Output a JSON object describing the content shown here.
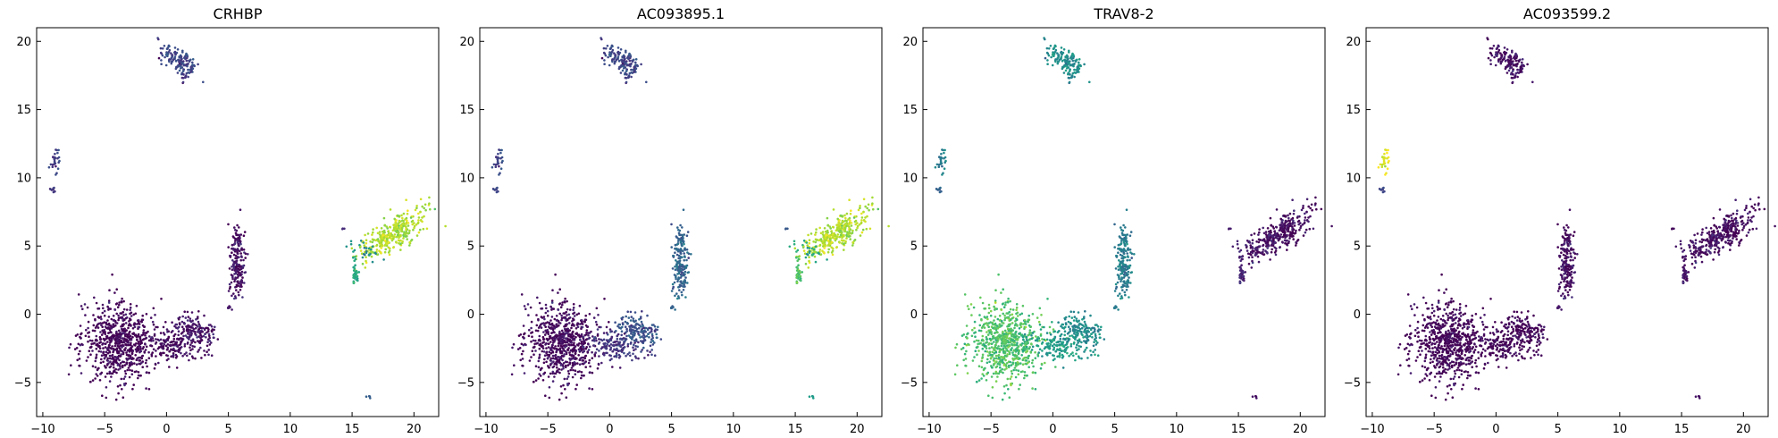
{
  "chart_data": {
    "type": "scatter",
    "xlim": [
      -10.5,
      22
    ],
    "ylim": [
      -7.5,
      21
    ],
    "x_ticks": [
      -10,
      -5,
      0,
      5,
      10,
      15,
      20
    ],
    "y_ticks": [
      -5,
      0,
      5,
      10,
      15,
      20
    ],
    "x_tick_labels": [
      "−10",
      "−5",
      "0",
      "5",
      "10",
      "15",
      "20"
    ],
    "y_tick_labels": [
      "−5",
      "0",
      "5",
      "10",
      "15",
      "20"
    ],
    "grid": false,
    "legend": "none",
    "colormap": "viridis",
    "clusters": [
      {
        "id": "top",
        "cx": 1.0,
        "cy": 18.6,
        "sx": 0.9,
        "sy": 0.45,
        "n": 140,
        "angle": -0.55
      },
      {
        "id": "top-tail",
        "cx": 1.4,
        "cy": 17.5,
        "sx": 0.12,
        "sy": 0.35,
        "n": 14,
        "angle": 0
      },
      {
        "id": "left-a",
        "cx": -9.0,
        "cy": 11.1,
        "sx": 0.2,
        "sy": 0.4,
        "n": 28,
        "angle": 0
      },
      {
        "id": "left-b",
        "cx": -9.1,
        "cy": 9.2,
        "sx": 0.15,
        "sy": 0.12,
        "n": 9,
        "angle": 0
      },
      {
        "id": "big",
        "cx": -3.8,
        "cy": -2.1,
        "sx": 1.5,
        "sy": 1.5,
        "n": 700,
        "angle": -0.35
      },
      {
        "id": "big-arm",
        "cx": 0.3,
        "cy": -2.3,
        "sx": 1.2,
        "sy": 0.5,
        "n": 160,
        "angle": -0.2
      },
      {
        "id": "right-arm",
        "cx": 2.3,
        "cy": -1.2,
        "sx": 0.9,
        "sy": 0.5,
        "n": 160,
        "angle": -0.15
      },
      {
        "id": "mid-strip",
        "cx": 5.7,
        "cy": 4.0,
        "sx": 0.35,
        "sy": 1.4,
        "n": 190,
        "angle": 0
      },
      {
        "id": "mid-dot",
        "cx": 5.0,
        "cy": 0.5,
        "sx": 0.12,
        "sy": 0.08,
        "n": 5,
        "angle": 0
      },
      {
        "id": "right",
        "cx": 18.4,
        "cy": 5.9,
        "sx": 1.6,
        "sy": 0.55,
        "n": 330,
        "angle": 0.55
      },
      {
        "id": "right-arc",
        "cx": 16.3,
        "cy": 4.6,
        "sx": 0.8,
        "sy": 0.3,
        "n": 25,
        "angle": -0.35
      },
      {
        "id": "right-low",
        "cx": 15.2,
        "cy": 2.8,
        "sx": 0.15,
        "sy": 0.55,
        "n": 40,
        "angle": 0
      },
      {
        "id": "right-dot",
        "cx": 14.3,
        "cy": 6.3,
        "sx": 0.06,
        "sy": 0.05,
        "n": 3,
        "angle": 0
      },
      {
        "id": "bottom-dot",
        "cx": 16.3,
        "cy": -6.0,
        "sx": 0.1,
        "sy": 0.07,
        "n": 4,
        "angle": 0
      }
    ],
    "panels": [
      {
        "title": "CRHBP",
        "cluster_values": {
          "top": 0.22,
          "top-tail": 0.15,
          "left-a": 0.18,
          "left-b": 0.15,
          "big": 0.0,
          "big-arm": 0.02,
          "right-arm": 0.05,
          "mid-strip": 0.04,
          "mid-dot": 0.05,
          "right": 0.88,
          "right-arc": 0.5,
          "right-low": 0.6,
          "right-dot": 0.15,
          "bottom-dot": 0.3
        }
      },
      {
        "title": "AC093895.1",
        "cluster_values": {
          "top": 0.22,
          "top-tail": 0.2,
          "left-a": 0.2,
          "left-b": 0.2,
          "big": 0.02,
          "big-arm": 0.15,
          "right-arm": 0.25,
          "mid-strip": 0.32,
          "mid-dot": 0.3,
          "right": 0.88,
          "right-arc": 0.6,
          "right-low": 0.72,
          "right-dot": 0.3,
          "bottom-dot": 0.55
        }
      },
      {
        "title": "TRAV8-2",
        "cluster_values": {
          "top": 0.5,
          "top-tail": 0.45,
          "left-a": 0.42,
          "left-b": 0.3,
          "big": 0.72,
          "big-arm": 0.55,
          "right-arm": 0.48,
          "mid-strip": 0.42,
          "mid-dot": 0.4,
          "right": 0.03,
          "right-arc": 0.08,
          "right-low": 0.1,
          "right-dot": 0.1,
          "bottom-dot": 0.05
        }
      },
      {
        "title": "AC093599.2",
        "cluster_values": {
          "top": 0.05,
          "top-tail": 0.05,
          "left-a": 0.95,
          "left-b": 0.2,
          "big": 0.0,
          "big-arm": 0.0,
          "right-arm": 0.0,
          "mid-strip": 0.03,
          "mid-dot": 0.05,
          "right": 0.03,
          "right-arc": 0.05,
          "right-low": 0.05,
          "right-dot": 0.05,
          "bottom-dot": 0.05
        }
      }
    ]
  }
}
